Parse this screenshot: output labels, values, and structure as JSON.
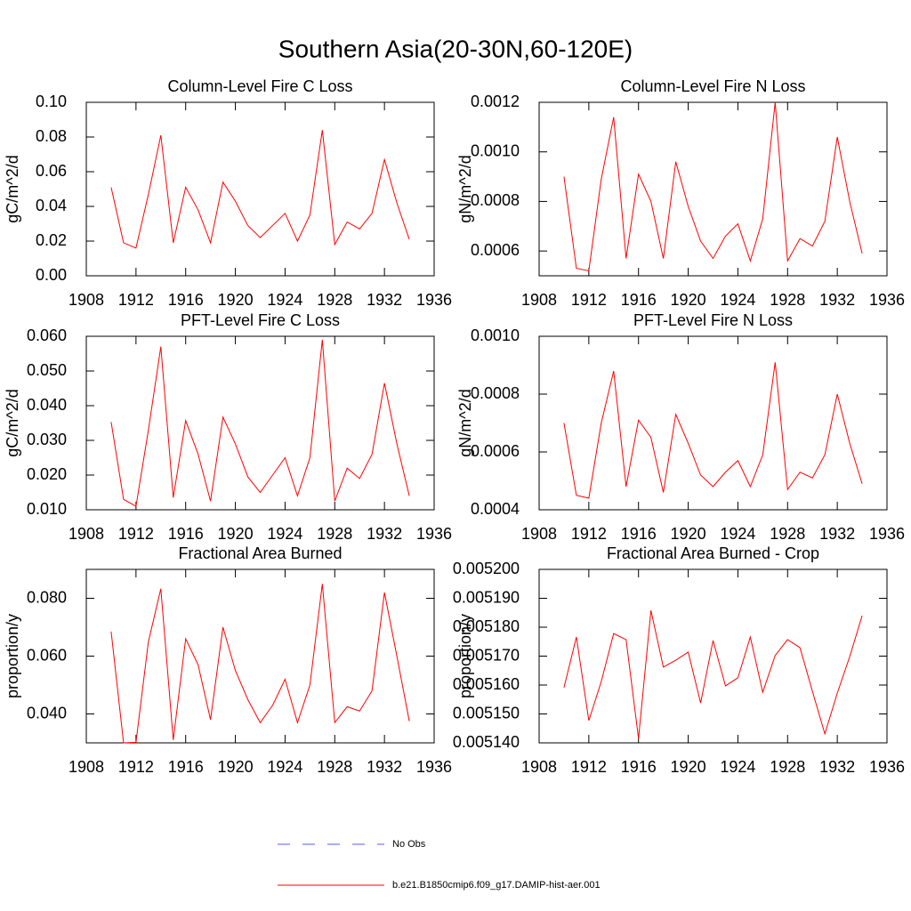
{
  "title": "Southern Asia(20-30N,60-120E)",
  "legend": [
    {
      "name": "No Obs",
      "color": "#5a5aff",
      "dashed": true
    },
    {
      "name": "b.e21.B1850cmip6.f09_g17.DAMIP-hist-aer.001",
      "color": "#ff0000",
      "dashed": false
    }
  ],
  "chart_data": [
    {
      "type": "line",
      "title": "Column-Level Fire C Loss",
      "ylabel": "gC/m^2/d",
      "color": "#ff0000",
      "x": [
        1910,
        1911,
        1912,
        1913,
        1914,
        1915,
        1916,
        1917,
        1918,
        1919,
        1920,
        1921,
        1922,
        1923,
        1924,
        1925,
        1926,
        1927,
        1928,
        1929,
        1930,
        1931,
        1932,
        1933,
        1934
      ],
      "values": [
        0.051,
        0.019,
        0.016,
        0.047,
        0.081,
        0.019,
        0.051,
        0.038,
        0.019,
        0.054,
        0.043,
        0.029,
        0.022,
        0.029,
        0.036,
        0.02,
        0.035,
        0.084,
        0.018,
        0.031,
        0.027,
        0.036,
        0.067,
        0.042,
        0.021
      ],
      "xlim": [
        1908,
        1936
      ],
      "xticks": [
        1908,
        1912,
        1916,
        1920,
        1924,
        1928,
        1932,
        1936
      ],
      "ylim": [
        0,
        0.1
      ],
      "yticks": [
        {
          "value": 0,
          "label": "0.00"
        },
        {
          "value": 0.02,
          "label": "0.02"
        },
        {
          "value": 0.04,
          "label": "0.04"
        },
        {
          "value": 0.06,
          "label": "0.06"
        },
        {
          "value": 0.08,
          "label": "0.08"
        },
        {
          "value": 0.1,
          "label": "0.10"
        }
      ]
    },
    {
      "type": "line",
      "title": "Column-Level Fire N Loss",
      "ylabel": "gN/m^2/d",
      "color": "#ff0000",
      "x": [
        1910,
        1911,
        1912,
        1913,
        1914,
        1915,
        1916,
        1917,
        1918,
        1919,
        1920,
        1921,
        1922,
        1923,
        1924,
        1925,
        1926,
        1927,
        1928,
        1929,
        1930,
        1931,
        1932,
        1933,
        1934
      ],
      "values": [
        0.0009,
        0.00053,
        0.00052,
        0.00089,
        0.00114,
        0.00057,
        0.00091,
        0.0008,
        0.00057,
        0.00096,
        0.00078,
        0.00064,
        0.00057,
        0.00066,
        0.00071,
        0.00056,
        0.00073,
        0.0012,
        0.00056,
        0.00065,
        0.00062,
        0.00072,
        0.00106,
        0.0008,
        0.00059
      ],
      "xlim": [
        1908,
        1936
      ],
      "xticks": [
        1908,
        1912,
        1916,
        1920,
        1924,
        1928,
        1932,
        1936
      ],
      "ylim": [
        0.0005,
        0.0012
      ],
      "yticks": [
        0.0006,
        0.0008,
        {
          "value": 0.001,
          "label": "0.0010"
        },
        0.0012
      ]
    },
    {
      "type": "line",
      "title": "PFT-Level Fire C Loss",
      "ylabel": "gC/m^2/d",
      "color": "#ff0000",
      "x": [
        1910,
        1911,
        1912,
        1913,
        1914,
        1915,
        1916,
        1917,
        1918,
        1919,
        1920,
        1921,
        1922,
        1923,
        1924,
        1925,
        1926,
        1927,
        1928,
        1929,
        1930,
        1931,
        1932,
        1933,
        1934
      ],
      "values": [
        0.0353,
        0.013,
        0.011,
        0.033,
        0.057,
        0.0135,
        0.0357,
        0.026,
        0.0125,
        0.0367,
        0.029,
        0.0195,
        0.015,
        0.02,
        0.025,
        0.014,
        0.025,
        0.059,
        0.0125,
        0.022,
        0.019,
        0.026,
        0.0465,
        0.029,
        0.014
      ],
      "xlim": [
        1908,
        1936
      ],
      "xticks": [
        1908,
        1912,
        1916,
        1920,
        1924,
        1928,
        1932,
        1936
      ],
      "ylim": [
        0.01,
        0.06
      ],
      "yticks": [
        {
          "value": 0.01,
          "label": "0.010"
        },
        {
          "value": 0.02,
          "label": "0.020"
        },
        {
          "value": 0.03,
          "label": "0.030"
        },
        {
          "value": 0.04,
          "label": "0.040"
        },
        {
          "value": 0.05,
          "label": "0.050"
        },
        {
          "value": 0.06,
          "label": "0.060"
        }
      ]
    },
    {
      "type": "line",
      "title": "PFT-Level Fire N Loss",
      "ylabel": "gN/m^2/d",
      "color": "#ff0000",
      "x": [
        1910,
        1911,
        1912,
        1913,
        1914,
        1915,
        1916,
        1917,
        1918,
        1919,
        1920,
        1921,
        1922,
        1923,
        1924,
        1925,
        1926,
        1927,
        1928,
        1929,
        1930,
        1931,
        1932,
        1933,
        1934
      ],
      "values": [
        0.0007,
        0.00045,
        0.00044,
        0.0007,
        0.00088,
        0.00048,
        0.00071,
        0.00065,
        0.00046,
        0.00073,
        0.00063,
        0.00052,
        0.00048,
        0.00053,
        0.00057,
        0.00048,
        0.00059,
        0.00091,
        0.00047,
        0.00053,
        0.00051,
        0.00059,
        0.0008,
        0.00063,
        0.00049
      ],
      "xlim": [
        1908,
        1936
      ],
      "xticks": [
        1908,
        1912,
        1916,
        1920,
        1924,
        1928,
        1932,
        1936
      ],
      "ylim": [
        0.0004,
        0.001
      ],
      "yticks": [
        0.0004,
        0.0006,
        0.0008,
        {
          "value": 0.001,
          "label": "0.0010"
        }
      ]
    },
    {
      "type": "line",
      "title": "Fractional Area Burned",
      "ylabel": "proportion/y",
      "color": "#ff0000",
      "x": [
        1910,
        1911,
        1912,
        1913,
        1914,
        1915,
        1916,
        1917,
        1918,
        1919,
        1920,
        1921,
        1922,
        1923,
        1924,
        1925,
        1926,
        1927,
        1928,
        1929,
        1930,
        1931,
        1932,
        1933,
        1934
      ],
      "values": [
        0.0685,
        0.03,
        0.0302,
        0.065,
        0.0833,
        0.031,
        0.066,
        0.057,
        0.038,
        0.07,
        0.055,
        0.045,
        0.037,
        0.043,
        0.052,
        0.037,
        0.05,
        0.085,
        0.037,
        0.0425,
        0.041,
        0.048,
        0.082,
        0.06,
        0.0375
      ],
      "xlim": [
        1908,
        1936
      ],
      "xticks": [
        1908,
        1912,
        1916,
        1920,
        1924,
        1928,
        1932,
        1936
      ],
      "ylim": [
        0.03,
        0.09
      ],
      "yticks": [
        {
          "value": 0.04,
          "label": "0.040"
        },
        {
          "value": 0.06,
          "label": "0.060"
        },
        {
          "value": 0.08,
          "label": "0.080"
        }
      ]
    },
    {
      "type": "line",
      "title": "Fractional Area Burned - Crop",
      "ylabel": "proportion/y",
      "color": "#ff0000",
      "x": [
        1910,
        1911,
        1912,
        1913,
        1914,
        1915,
        1916,
        1917,
        1918,
        1919,
        1920,
        1921,
        1922,
        1923,
        1924,
        1925,
        1926,
        1927,
        1928,
        1929,
        1930,
        1931,
        1932,
        1933,
        1934
      ],
      "values": [
        0.0051591,
        0.0051766,
        0.0051477,
        0.0051612,
        0.0051778,
        0.0051757,
        0.0051415,
        0.0051858,
        0.0051662,
        0.0051686,
        0.0051714,
        0.0051538,
        0.0051754,
        0.0051597,
        0.0051625,
        0.0051766,
        0.0051575,
        0.0051702,
        0.0051757,
        0.0051729,
        0.0051578,
        0.0051431,
        0.0051572,
        0.0051698,
        0.005184
      ],
      "xlim": [
        1908,
        1936
      ],
      "xticks": [
        1908,
        1912,
        1916,
        1920,
        1924,
        1928,
        1932,
        1936
      ],
      "ylim": [
        0.00514,
        0.0052
      ],
      "yticks": [
        {
          "value": 0.00514,
          "label": "0.005140"
        },
        {
          "value": 0.00515,
          "label": "0.005150"
        },
        {
          "value": 0.00516,
          "label": "0.005160"
        },
        {
          "value": 0.00517,
          "label": "0.005170"
        },
        {
          "value": 0.00518,
          "label": "0.005180"
        },
        {
          "value": 0.00519,
          "label": "0.005190"
        },
        {
          "value": 0.0052,
          "label": "0.005200"
        }
      ]
    }
  ]
}
